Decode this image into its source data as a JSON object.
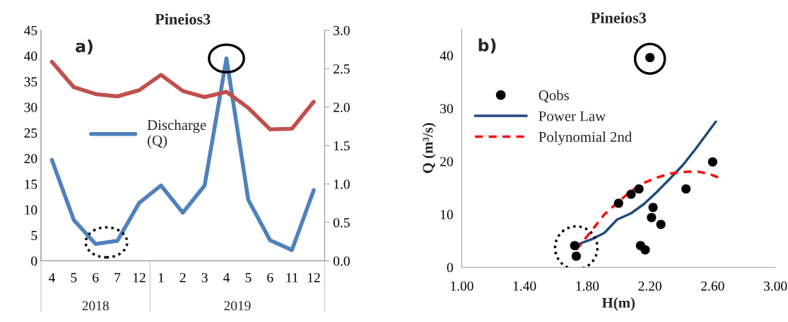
{
  "chart_data": [
    {
      "type": "line",
      "title": "Pineios3",
      "categories": [
        "4",
        "5",
        "6",
        "7",
        "12",
        "1",
        "2",
        "3",
        "4",
        "5",
        "6",
        "11",
        "12"
      ],
      "series": [
        {
          "name": "Discharge (Q)",
          "color": "#4f81bd",
          "values": [
            19.7,
            8.0,
            3.3,
            3.9,
            11.3,
            14.7,
            9.4,
            14.7,
            39.5,
            11.9,
            4.0,
            2.1,
            13.8
          ]
        },
        {
          "color": "#c0504d",
          "axis": "y2",
          "values": [
            2.59,
            2.26,
            2.17,
            2.14,
            2.22,
            2.42,
            2.21,
            2.13,
            2.2,
            1.99,
            1.71,
            1.72,
            2.07
          ]
        }
      ],
      "ylim": [
        0,
        45
      ],
      "yticks": [
        0,
        5,
        10,
        15,
        20,
        25,
        30,
        35,
        40,
        45
      ],
      "y2lim": [
        0,
        3.0
      ],
      "y2ticks": [
        {
          "value": 0,
          "label": "0.0"
        },
        {
          "value": 0.5,
          "label": "0.5"
        },
        {
          "value": 1.0,
          "label": "1.0"
        },
        {
          "value": 1.5,
          "label": "1.5"
        },
        {
          "value": 2.0,
          "label": "2.0"
        },
        {
          "value": 2.5,
          "label": "2.5"
        },
        {
          "value": 3.0,
          "label": "3.0"
        }
      ],
      "annotations": [
        "a)",
        "2018",
        "2019"
      ],
      "legend": "center",
      "grid": false
    },
    {
      "type": "scatter",
      "title": "Pineios3",
      "xlabel": "H(m)",
      "ylabel": "Q (m³/s)",
      "series": [
        {
          "name": "Qobs",
          "type": "scatter",
          "color": "#000000",
          "marker": "circle",
          "x": [
            1.72,
            1.73,
            2.0,
            2.08,
            2.13,
            2.14,
            2.17,
            2.22,
            2.21,
            2.27,
            2.43,
            2.6,
            2.2
          ],
          "values": [
            4.1,
            2.1,
            12.1,
            13.8,
            14.8,
            4.1,
            3.3,
            11.3,
            9.4,
            8.1,
            14.8,
            19.9,
            39.6
          ]
        },
        {
          "name": "Power Law",
          "type": "line",
          "color": "#1f497d",
          "line_style": "solid",
          "x": [
            1.74,
            1.83,
            1.91,
            1.99,
            2.08,
            2.16,
            2.24,
            2.33,
            2.41,
            2.49,
            2.62
          ],
          "values": [
            4.3,
            5.3,
            6.5,
            9.0,
            10.2,
            11.9,
            14.1,
            16.8,
            19.3,
            22.3,
            27.5
          ]
        },
        {
          "name": "Polynomial 2nd",
          "type": "line",
          "color": "#ff0000",
          "line_style": "dashed",
          "x": [
            1.73,
            1.83,
            1.91,
            2.0,
            2.08,
            2.16,
            2.24,
            2.33,
            2.41,
            2.5,
            2.58,
            2.65
          ],
          "values": [
            3.3,
            7.0,
            10.0,
            12.4,
            14.4,
            15.9,
            16.9,
            17.7,
            18.0,
            18.1,
            17.6,
            16.8
          ]
        }
      ],
      "xlim": [
        1.0,
        3.0
      ],
      "xticks": [
        {
          "value": 1.0,
          "label": "1.00"
        },
        {
          "value": 1.4,
          "label": "1.40"
        },
        {
          "value": 1.8,
          "label": "1.80"
        },
        {
          "value": 2.2,
          "label": "2.20"
        },
        {
          "value": 2.6,
          "label": "2.60"
        },
        {
          "value": 3.0,
          "label": "3.00"
        }
      ],
      "ylim": [
        0,
        45
      ],
      "yticks": [
        0,
        10,
        20,
        30,
        40
      ],
      "annotations": [
        "b)"
      ],
      "legend": "top left",
      "grid": false
    }
  ]
}
